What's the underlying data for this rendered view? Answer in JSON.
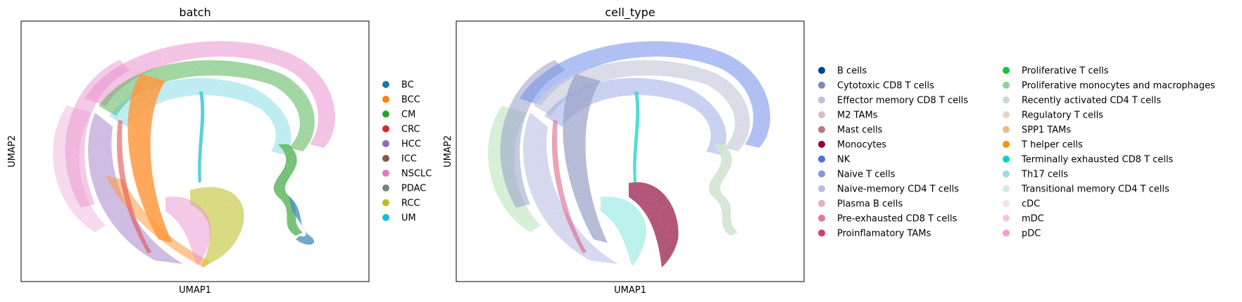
{
  "chart_data": [
    {
      "type": "scatter",
      "title": "batch",
      "xlabel": "UMAP1",
      "ylabel": "UMAP2",
      "grid": false,
      "legend_placement": "right",
      "legend": [
        {
          "name": "BC",
          "color": "#1f77b4"
        },
        {
          "name": "BCC",
          "color": "#ff7f0e"
        },
        {
          "name": "CM",
          "color": "#2ca02c"
        },
        {
          "name": "CRC",
          "color": "#d62728"
        },
        {
          "name": "HCC",
          "color": "#9467bd"
        },
        {
          "name": "ICC",
          "color": "#8c564b"
        },
        {
          "name": "NSCLC",
          "color": "#e377c2"
        },
        {
          "name": "PDAC",
          "color": "#7f7f7f"
        },
        {
          "name": "RCC",
          "color": "#bcbd22"
        },
        {
          "name": "UM",
          "color": "#17becf"
        }
      ]
    },
    {
      "type": "scatter",
      "title": "cell_type",
      "xlabel": "UMAP1",
      "ylabel": "UMAP2",
      "grid": false,
      "legend_placement": "right",
      "legend": [
        {
          "name": "B cells",
          "color": "#023fa5"
        },
        {
          "name": "Cytotoxic CD8 T cells",
          "color": "#7d87b9"
        },
        {
          "name": "Effector memory CD8 T cells",
          "color": "#bec1d4"
        },
        {
          "name": "M2 TAMs",
          "color": "#d6bcc0"
        },
        {
          "name": "Mast cells",
          "color": "#bb7784"
        },
        {
          "name": "Monocytes",
          "color": "#8e063b"
        },
        {
          "name": "NK",
          "color": "#4a6fe3"
        },
        {
          "name": "Naive T cells",
          "color": "#8595e1"
        },
        {
          "name": "Naive-memory CD4 T cells",
          "color": "#b5bbe3"
        },
        {
          "name": "Plasma B cells",
          "color": "#e6afb9"
        },
        {
          "name": "Pre-exhausted CD8 T cells",
          "color": "#e07b91"
        },
        {
          "name": "Proinflamatory TAMs",
          "color": "#d33f6a"
        },
        {
          "name": "Proliferative T cells",
          "color": "#11c638"
        },
        {
          "name": "Proliferative monocytes and macrophages",
          "color": "#8dd593"
        },
        {
          "name": "Recently activated CD4 T cells",
          "color": "#c6dec7"
        },
        {
          "name": "Regulatory T cells",
          "color": "#ead3c6"
        },
        {
          "name": "SPP1 TAMs",
          "color": "#f0b98d"
        },
        {
          "name": "T helper cells",
          "color": "#ef9708"
        },
        {
          "name": "Terminally exhausted CD8 T cells",
          "color": "#0fcfc0"
        },
        {
          "name": "Th17 cells",
          "color": "#9cded6"
        },
        {
          "name": "Transitional memory CD4 T cells",
          "color": "#d5eae7"
        },
        {
          "name": "cDC",
          "color": "#f3e1eb"
        },
        {
          "name": "mDC",
          "color": "#f6c4e1"
        },
        {
          "name": "pDC",
          "color": "#f79cd4"
        }
      ]
    }
  ]
}
